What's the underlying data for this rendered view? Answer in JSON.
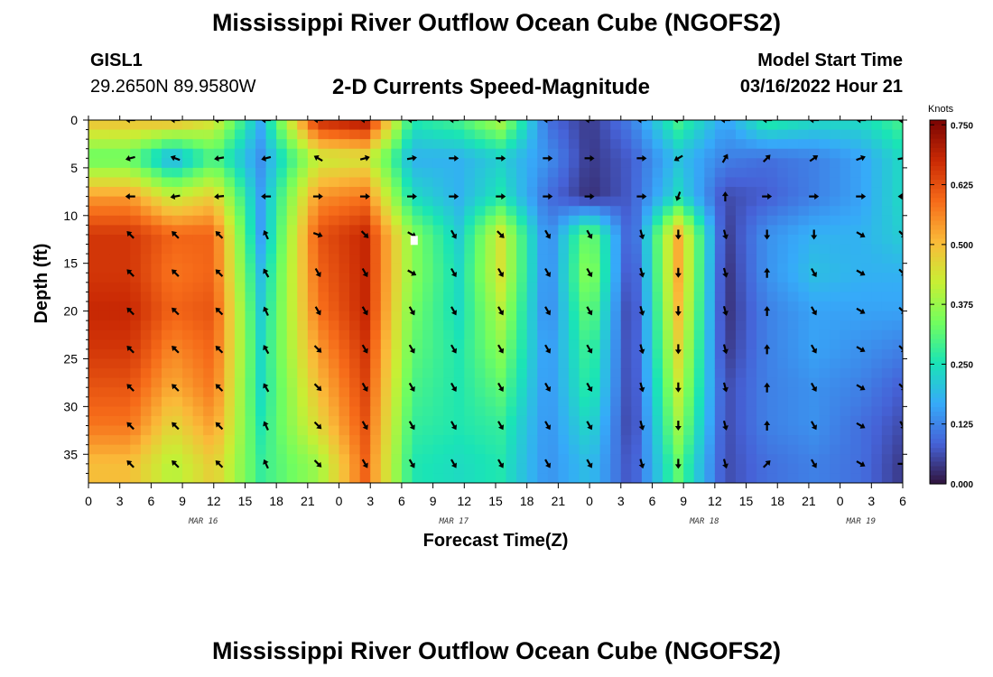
{
  "page": {
    "title_top": "Mississippi River Outflow Ocean Cube (NGOFS2)",
    "title_bottom": "Mississippi River Outflow Ocean Cube (NGOFS2)",
    "station_id": "GISL1",
    "station_coords": "29.2650N  89.9580W",
    "variable_title": "2-D Currents Speed-Magnitude",
    "model_start_label": "Model Start Time",
    "model_start_value": "03/16/2022 Hour 21"
  },
  "colors": {
    "arrow": "#000000",
    "marker": "#ffffff",
    "colormap": [
      "#30123b",
      "#4662d7",
      "#36aaf9",
      "#1ae4b6",
      "#72fe5e",
      "#c8ef34",
      "#faba39",
      "#f66b19",
      "#ca2a04",
      "#7a0403"
    ]
  },
  "chart_data": {
    "type": "heatmap",
    "title": "2-D Currents Speed-Magnitude",
    "xlabel": "Forecast Time(Z)",
    "ylabel": "Depth (ft)",
    "x_range_hours": [
      0,
      78
    ],
    "ylim": [
      0,
      38
    ],
    "y_inverted": true,
    "x_ticks": [
      "0",
      "3",
      "6",
      "9",
      "12",
      "15",
      "18",
      "21",
      "0",
      "3",
      "6",
      "9",
      "12",
      "15",
      "18",
      "21",
      "0",
      "3",
      "6",
      "9",
      "12",
      "15",
      "18",
      "21",
      "0",
      "3",
      "6"
    ],
    "y_ticks": [
      0,
      5,
      10,
      15,
      20,
      25,
      30,
      35
    ],
    "date_labels": [
      {
        "label": "MAR 16",
        "hour": 11
      },
      {
        "label": "MAR 17",
        "hour": 35
      },
      {
        "label": "MAR 18",
        "hour": 59
      },
      {
        "label": "MAR 19",
        "hour": 74
      }
    ],
    "colorbar": {
      "unit": "Knots",
      "min": 0.0,
      "max": 0.76,
      "ticks": [
        "0.000",
        "0.125",
        "0.250",
        "0.375",
        "0.500",
        "0.625",
        "0.750"
      ]
    },
    "grid": false,
    "depth_bins_ft": [
      0,
      4,
      8,
      12,
      16,
      20,
      24,
      28,
      32,
      36
    ],
    "time_hours": [
      4,
      8,
      12,
      16.5,
      22,
      26.5,
      31,
      35.5,
      39.5,
      44,
      48,
      52,
      56.5,
      61,
      65,
      69.5,
      74,
      78
    ],
    "speed": [
      [
        0.5,
        0.52,
        0.45,
        0.18,
        0.68,
        0.72,
        0.26,
        0.3,
        0.4,
        0.1,
        0.04,
        0.12,
        0.3,
        0.16,
        0.28,
        0.24,
        0.24,
        0.3
      ],
      [
        0.32,
        0.16,
        0.3,
        0.14,
        0.42,
        0.44,
        0.18,
        0.18,
        0.22,
        0.14,
        0.04,
        0.08,
        0.2,
        0.12,
        0.1,
        0.12,
        0.16,
        0.24
      ],
      [
        0.54,
        0.42,
        0.48,
        0.16,
        0.55,
        0.58,
        0.24,
        0.18,
        0.26,
        0.1,
        0.03,
        0.08,
        0.24,
        0.06,
        0.08,
        0.12,
        0.16,
        0.24
      ],
      [
        0.66,
        0.6,
        0.6,
        0.16,
        0.62,
        0.68,
        0.36,
        0.22,
        0.44,
        0.12,
        0.35,
        0.06,
        0.52,
        0.04,
        0.14,
        0.18,
        0.18,
        0.22
      ],
      [
        0.66,
        0.58,
        0.6,
        0.2,
        0.6,
        0.68,
        0.36,
        0.24,
        0.44,
        0.12,
        0.38,
        0.04,
        0.52,
        0.03,
        0.14,
        0.2,
        0.18,
        0.18
      ],
      [
        0.68,
        0.6,
        0.62,
        0.22,
        0.58,
        0.68,
        0.34,
        0.24,
        0.4,
        0.12,
        0.34,
        0.03,
        0.5,
        0.03,
        0.12,
        0.16,
        0.16,
        0.16
      ],
      [
        0.66,
        0.56,
        0.6,
        0.24,
        0.54,
        0.66,
        0.32,
        0.26,
        0.36,
        0.14,
        0.3,
        0.04,
        0.46,
        0.04,
        0.12,
        0.16,
        0.14,
        0.12
      ],
      [
        0.62,
        0.52,
        0.58,
        0.24,
        0.5,
        0.64,
        0.3,
        0.26,
        0.32,
        0.14,
        0.28,
        0.04,
        0.42,
        0.06,
        0.12,
        0.14,
        0.12,
        0.08
      ],
      [
        0.58,
        0.46,
        0.54,
        0.26,
        0.46,
        0.62,
        0.28,
        0.26,
        0.28,
        0.14,
        0.24,
        0.04,
        0.38,
        0.06,
        0.12,
        0.14,
        0.1,
        0.06
      ],
      [
        0.5,
        0.4,
        0.48,
        0.28,
        0.38,
        0.6,
        0.26,
        0.24,
        0.26,
        0.14,
        0.2,
        0.06,
        0.32,
        0.06,
        0.1,
        0.12,
        0.1,
        0.04
      ]
    ],
    "arrow_times_hours": [
      4,
      8.3,
      12.5,
      17,
      22,
      26.5,
      31,
      35,
      39.5,
      44,
      48,
      53,
      56.5,
      61,
      65,
      69.5,
      74,
      78
    ],
    "arrow_depths_ft": [
      0,
      4,
      8,
      12,
      16,
      20,
      24,
      28,
      32,
      36
    ],
    "arrow_directions_deg": [
      [
        180,
        180,
        180,
        180,
        180,
        180,
        180,
        180,
        180,
        180,
        180,
        180,
        180,
        180,
        180,
        180,
        180,
        180
      ],
      [
        195,
        160,
        190,
        195,
        150,
        15,
        10,
        0,
        0,
        0,
        0,
        0,
        210,
        60,
        45,
        35,
        20,
        10
      ],
      [
        180,
        190,
        185,
        180,
        0,
        0,
        0,
        0,
        0,
        0,
        0,
        0,
        250,
        90,
        0,
        0,
        0,
        180
      ],
      [
        135,
        135,
        135,
        115,
        340,
        315,
        330,
        300,
        315,
        300,
        300,
        285,
        270,
        285,
        270,
        270,
        330,
        315
      ],
      [
        135,
        135,
        135,
        120,
        300,
        300,
        330,
        300,
        300,
        300,
        300,
        285,
        270,
        285,
        90,
        300,
        330,
        315
      ],
      [
        135,
        135,
        135,
        115,
        300,
        300,
        300,
        300,
        300,
        300,
        300,
        285,
        270,
        285,
        90,
        300,
        330,
        315
      ],
      [
        135,
        135,
        135,
        120,
        315,
        300,
        300,
        300,
        300,
        300,
        300,
        285,
        270,
        285,
        90,
        300,
        330,
        315
      ],
      [
        135,
        135,
        135,
        120,
        315,
        300,
        300,
        300,
        300,
        300,
        300,
        285,
        270,
        285,
        90,
        300,
        330,
        315
      ],
      [
        135,
        135,
        135,
        115,
        315,
        300,
        300,
        300,
        300,
        300,
        300,
        285,
        270,
        285,
        90,
        300,
        330,
        300
      ],
      [
        135,
        135,
        135,
        115,
        315,
        300,
        300,
        300,
        300,
        300,
        300,
        285,
        270,
        285,
        45,
        300,
        330,
        0
      ]
    ]
  }
}
